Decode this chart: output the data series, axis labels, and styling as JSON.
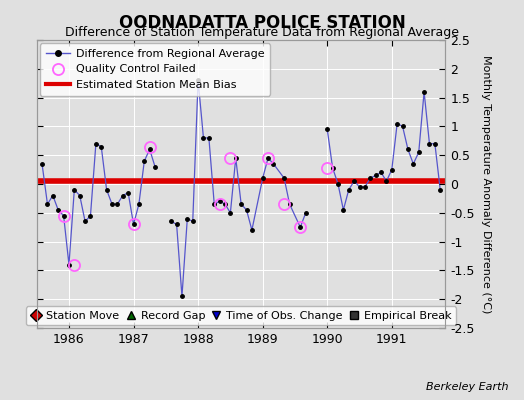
{
  "title": "OODNADATTA POLICE STATION",
  "subtitle": "Difference of Station Temperature Data from Regional Average",
  "ylabel": "Monthly Temperature Anomaly Difference (°C)",
  "background_color": "#e0e0e0",
  "plot_bg_color": "#e0e0e0",
  "ylim": [
    -2.5,
    2.5
  ],
  "xlim": [
    1985.5,
    1991.83
  ],
  "yticks": [
    -2.5,
    -2.0,
    -1.5,
    -1.0,
    -0.5,
    0.0,
    0.5,
    1.0,
    1.5,
    2.0,
    2.5
  ],
  "xticks": [
    1986,
    1987,
    1988,
    1989,
    1990,
    1991
  ],
  "mean_bias": 0.05,
  "series_x": [
    1985.583,
    1985.667,
    1985.75,
    1985.833,
    1985.917,
    1986.0,
    1986.083,
    1986.167,
    1986.25,
    1986.333,
    1986.417,
    1986.5,
    1986.583,
    1986.667,
    1986.75,
    1986.833,
    1986.917,
    1987.0,
    1987.083,
    1987.167,
    1987.25,
    1987.333,
    1987.583,
    1987.667,
    1987.75,
    1987.833,
    1987.917,
    1988.0,
    1988.083,
    1988.167,
    1988.25,
    1988.333,
    1988.417,
    1988.5,
    1988.583,
    1988.667,
    1988.75,
    1988.833,
    1989.0,
    1989.083,
    1989.167,
    1989.333,
    1989.417,
    1989.583,
    1989.667,
    1990.0,
    1990.083,
    1990.167,
    1990.25,
    1990.333,
    1990.417,
    1990.5,
    1990.583,
    1990.667,
    1990.75,
    1990.833,
    1990.917,
    1991.0,
    1991.083,
    1991.167,
    1991.25,
    1991.333,
    1991.417,
    1991.5,
    1991.583,
    1991.667,
    1991.75
  ],
  "series_y": [
    0.35,
    -0.35,
    -0.2,
    -0.45,
    -0.55,
    -1.4,
    -0.1,
    -0.2,
    -0.65,
    -0.55,
    0.7,
    0.65,
    -0.1,
    -0.35,
    -0.35,
    -0.2,
    -0.15,
    -0.7,
    -0.35,
    0.4,
    0.6,
    0.3,
    -0.65,
    -0.7,
    -1.95,
    -0.6,
    -0.65,
    1.8,
    0.8,
    0.8,
    -0.35,
    -0.3,
    -0.35,
    -0.5,
    0.45,
    -0.35,
    -0.45,
    -0.8,
    0.1,
    0.45,
    0.35,
    0.1,
    -0.35,
    -0.75,
    -0.5,
    0.95,
    0.28,
    0.0,
    -0.45,
    -0.1,
    0.05,
    -0.05,
    -0.05,
    0.1,
    0.15,
    0.2,
    0.05,
    0.25,
    1.05,
    1.0,
    0.6,
    0.35,
    0.55,
    1.6,
    0.7,
    0.7,
    -0.1
  ],
  "qc_failed_x": [
    1985.917,
    1986.083,
    1987.0,
    1987.25,
    1988.333,
    1988.5,
    1989.083,
    1989.333,
    1989.583,
    1990.0
  ],
  "qc_failed_y": [
    -0.55,
    -1.4,
    -0.7,
    0.65,
    -0.35,
    0.45,
    0.45,
    -0.35,
    -0.75,
    0.28
  ],
  "line_color": "#5555cc",
  "dot_color": "#000000",
  "bias_color": "#dd0000",
  "qc_color": "#ff66ff",
  "watermark": "Berkeley Earth",
  "title_fontsize": 12,
  "subtitle_fontsize": 9,
  "ylabel_fontsize": 8,
  "tick_fontsize": 9,
  "legend_fontsize": 8
}
